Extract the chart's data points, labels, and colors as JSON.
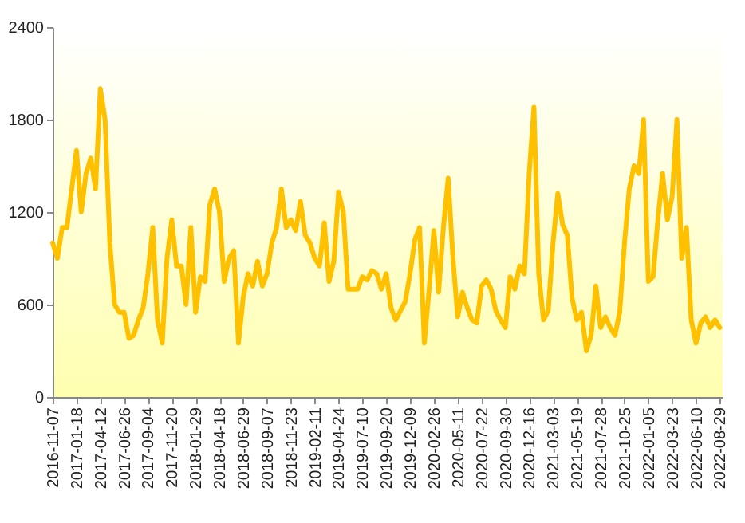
{
  "chart_data": {
    "type": "line",
    "categories": [
      "2016-11-07",
      null,
      null,
      null,
      null,
      "2017-01-18",
      null,
      null,
      null,
      null,
      "2017-04-12",
      null,
      null,
      null,
      null,
      "2017-06-26",
      null,
      null,
      null,
      null,
      "2017-09-04",
      null,
      null,
      null,
      null,
      "2017-11-20",
      null,
      null,
      null,
      null,
      "2018-01-29",
      null,
      null,
      null,
      null,
      "2018-04-18",
      null,
      null,
      null,
      null,
      "2018-06-29",
      null,
      null,
      null,
      null,
      "2018-09-07",
      null,
      null,
      null,
      null,
      "2018-11-23",
      null,
      null,
      null,
      null,
      "2019-02-11",
      null,
      null,
      null,
      null,
      "2019-04-24",
      null,
      null,
      null,
      null,
      "2019-07-10",
      null,
      null,
      null,
      null,
      "2019-09-20",
      null,
      null,
      null,
      null,
      "2019-12-09",
      null,
      null,
      null,
      null,
      "2020-02-26",
      null,
      null,
      null,
      null,
      "2020-05-11",
      null,
      null,
      null,
      null,
      "2020-07-22",
      null,
      null,
      null,
      null,
      "2020-09-30",
      null,
      null,
      null,
      null,
      "2020-12-16",
      null,
      null,
      null,
      null,
      "2021-03-03",
      null,
      null,
      null,
      null,
      "2021-05-19",
      null,
      null,
      null,
      null,
      "2021-07-28",
      null,
      null,
      null,
      null,
      "2021-10-25",
      null,
      null,
      null,
      null,
      "2022-01-05",
      null,
      null,
      null,
      null,
      "2022-03-23",
      null,
      null,
      null,
      null,
      "2022-06-10",
      null,
      null,
      null,
      null,
      "2022-08-29"
    ],
    "series": [
      {
        "color": "#ffc000",
        "values": [
          1000,
          900,
          1100,
          1100,
          1350,
          1600,
          1200,
          1450,
          1550,
          1350,
          2000,
          1800,
          1000,
          600,
          550,
          550,
          380,
          400,
          500,
          580,
          800,
          1100,
          500,
          350,
          900,
          1150,
          850,
          850,
          600,
          1100,
          550,
          780,
          750,
          1250,
          1350,
          1200,
          750,
          900,
          950,
          350,
          650,
          800,
          720,
          880,
          720,
          800,
          1000,
          1100,
          1350,
          1100,
          1150,
          1080,
          1270,
          1050,
          1000,
          900,
          850,
          1130,
          750,
          880,
          1330,
          1200,
          700,
          700,
          700,
          780,
          760,
          820,
          800,
          700,
          800,
          580,
          500,
          560,
          620,
          800,
          1020,
          1100,
          350,
          700,
          1080,
          680,
          1100,
          1420,
          900,
          520,
          680,
          580,
          500,
          480,
          720,
          760,
          700,
          560,
          500,
          450,
          780,
          700,
          850,
          800,
          1450,
          1880,
          800,
          500,
          560,
          1000,
          1320,
          1120,
          1050,
          640,
          500,
          550,
          300,
          400,
          720,
          450,
          520,
          450,
          400,
          550,
          1000,
          1350,
          1500,
          1450,
          1800,
          750,
          780,
          1150,
          1450,
          1150,
          1300,
          1800,
          900,
          1100,
          500,
          350,
          480,
          520,
          450,
          500,
          450
        ]
      }
    ],
    "ylim": [
      0,
      2400
    ],
    "yticks": [
      0,
      600,
      1200,
      1800,
      2400
    ],
    "grid": false
  }
}
